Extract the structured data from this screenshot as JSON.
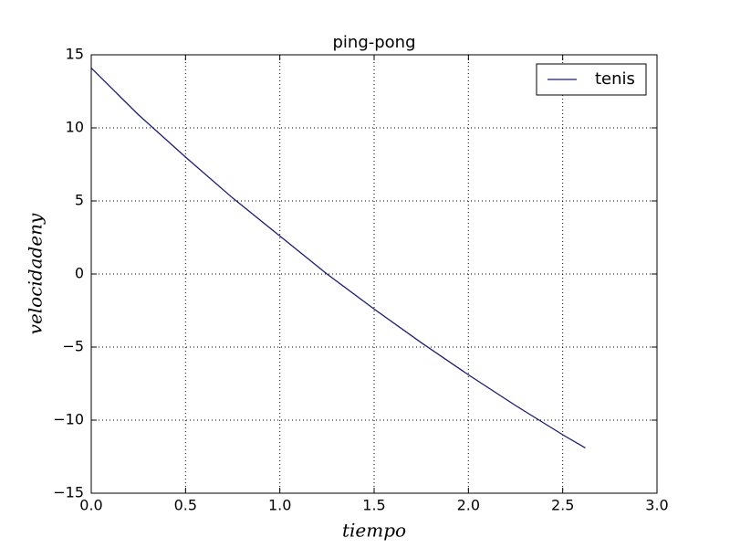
{
  "chart_data": {
    "type": "line",
    "title": "ping-pong",
    "xlabel": "tiempo",
    "ylabel": "velocidadeny",
    "x": [
      0,
      0.25,
      0.5,
      0.75,
      1.0,
      1.25,
      1.5,
      1.75,
      2.0,
      2.25,
      2.5,
      2.62
    ],
    "series": [
      {
        "name": "tenis",
        "color": "#1a1a80",
        "values": [
          14.1,
          10.9,
          8.0,
          5.2,
          2.6,
          0.0,
          -2.4,
          -4.7,
          -6.9,
          -9.0,
          -11.0,
          -11.9
        ]
      }
    ],
    "xlim": [
      0,
      3.0
    ],
    "xticks": [
      {
        "value": 0,
        "label": "0.0"
      },
      {
        "value": 0.5,
        "label": "0.5"
      },
      {
        "value": 1,
        "label": "1.0"
      },
      {
        "value": 1.5,
        "label": "1.5"
      },
      {
        "value": 2,
        "label": "2.0"
      },
      {
        "value": 2.5,
        "label": "2.5"
      },
      {
        "value": 3,
        "label": "3.0"
      }
    ],
    "ylim": [
      -15,
      15
    ],
    "yticks": [
      {
        "value": -15,
        "label": "−15"
      },
      {
        "value": -10,
        "label": "−10"
      },
      {
        "value": -5,
        "label": "−5"
      },
      0,
      5,
      10,
      15
    ],
    "grid": true,
    "legend": "upper right"
  }
}
